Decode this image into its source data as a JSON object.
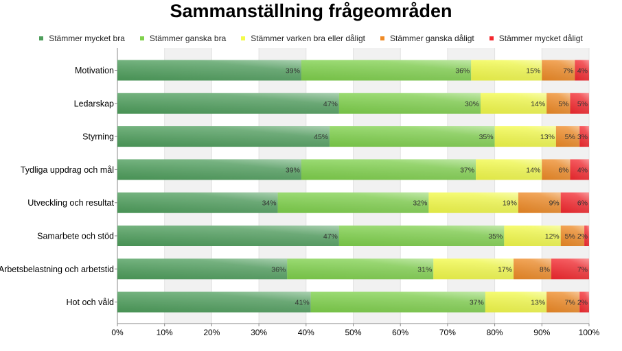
{
  "chart_data": {
    "type": "bar",
    "orientation": "horizontal",
    "stacked": true,
    "title": "Sammanställning frågeområden",
    "categories": [
      "Motivation",
      "Ledarskap",
      "Styrning",
      "Tydliga uppdrag och mål",
      "Utveckling och resultat",
      "Samarbete och stöd",
      "Arbetsbelastning och arbetstid",
      "Hot och våld"
    ],
    "series": [
      {
        "name": "Stämmer mycket bra",
        "color": "#4e9e5c",
        "values": [
          39,
          47,
          45,
          39,
          34,
          47,
          36,
          41
        ]
      },
      {
        "name": "Stämmer ganska bra",
        "color": "#7fd14c",
        "values": [
          36,
          30,
          35,
          37,
          32,
          35,
          31,
          37
        ]
      },
      {
        "name": "Stämmer varken bra eller dåligt",
        "color": "#f3fb4a",
        "values": [
          15,
          14,
          13,
          14,
          19,
          12,
          17,
          13
        ]
      },
      {
        "name": "Stämmer ganska dåligt",
        "color": "#ef8a25",
        "values": [
          7,
          5,
          5,
          6,
          9,
          5,
          8,
          7
        ]
      },
      {
        "name": "Stämmer mycket dåligt",
        "color": "#f4282e",
        "values": [
          4,
          5,
          3,
          4,
          6,
          2,
          7,
          2
        ]
      }
    ],
    "hidden_labels": [
      [
        4,
        5
      ],
      [
        4,
        7
      ]
    ],
    "xlim": [
      0,
      100
    ],
    "xticks": [
      "0%",
      "10%",
      "20%",
      "30%",
      "40%",
      "50%",
      "60%",
      "70%",
      "80%",
      "90%",
      "100%"
    ],
    "legend_position": "top",
    "grid": true
  }
}
